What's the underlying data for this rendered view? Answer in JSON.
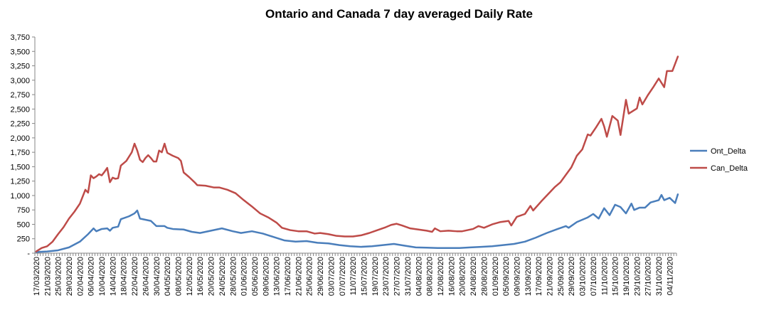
{
  "chart_data": {
    "type": "line",
    "title": "Ontario  and  Canada  7 day  averaged  Daily  Rate",
    "xlabel": "",
    "ylabel": "",
    "ylim": [
      0,
      3750
    ],
    "y_ticks": [
      0,
      250,
      500,
      750,
      1000,
      1250,
      1500,
      1750,
      2000,
      2250,
      2500,
      2750,
      3000,
      3250,
      3500,
      3750
    ],
    "y_tick_labels": [
      "-",
      "250",
      "500",
      "750",
      "1,000",
      "1,250",
      "1,500",
      "1,750",
      "2,000",
      "2,250",
      "2,500",
      "2,750",
      "3,000",
      "3,250",
      "3,500",
      "3,750"
    ],
    "x_start_date": "2020-03-17",
    "x_tick_labels": [
      "17/03/2020",
      "21/03/2020",
      "25/03/2020",
      "29/03/2020",
      "02/04/2020",
      "06/04/2020",
      "10/04/2020",
      "14/04/2020",
      "18/04/2020",
      "22/04/2020",
      "26/04/2020",
      "30/04/2020",
      "04/05/2020",
      "08/05/2020",
      "12/05/2020",
      "16/05/2020",
      "20/05/2020",
      "24/05/2020",
      "28/05/2020",
      "01/06/2020",
      "05/06/2020",
      "09/06/2020",
      "13/06/2020",
      "17/06/2020",
      "21/06/2020",
      "25/06/2020",
      "29/06/2020",
      "03/07/2020",
      "07/07/2020",
      "11/07/2020",
      "15/07/2020",
      "19/07/2020",
      "23/07/2020",
      "27/07/2020",
      "31/07/2020",
      "04/08/2020",
      "08/08/2020",
      "12/08/2020",
      "16/08/2020",
      "20/08/2020",
      "24/08/2020",
      "28/08/2020",
      "01/09/2020",
      "05/09/2020",
      "09/09/2020",
      "13/09/2020",
      "17/09/2020",
      "21/09/2020",
      "25/09/2020",
      "29/09/2020",
      "03/10/2020",
      "07/10/2020",
      "11/10/2020",
      "15/10/2020",
      "19/10/2020",
      "23/10/2020",
      "27/10/2020",
      "31/10/2020",
      "04/11/2020"
    ],
    "legend_position": "right",
    "grid": false,
    "series": [
      {
        "name": "Ont_Delta",
        "color": "#4a7ebb",
        "points": [
          [
            "2020-03-17",
            20
          ],
          [
            "2020-03-21",
            30
          ],
          [
            "2020-03-25",
            50
          ],
          [
            "2020-03-29",
            100
          ],
          [
            "2020-04-02",
            200
          ],
          [
            "2020-04-05",
            330
          ],
          [
            "2020-04-07",
            430
          ],
          [
            "2020-04-08",
            380
          ],
          [
            "2020-04-10",
            420
          ],
          [
            "2020-04-12",
            430
          ],
          [
            "2020-04-13",
            390
          ],
          [
            "2020-04-14",
            440
          ],
          [
            "2020-04-16",
            460
          ],
          [
            "2020-04-17",
            590
          ],
          [
            "2020-04-20",
            640
          ],
          [
            "2020-04-22",
            690
          ],
          [
            "2020-04-23",
            740
          ],
          [
            "2020-04-24",
            600
          ],
          [
            "2020-04-28",
            560
          ],
          [
            "2020-04-30",
            470
          ],
          [
            "2020-05-03",
            470
          ],
          [
            "2020-05-04",
            440
          ],
          [
            "2020-05-06",
            420
          ],
          [
            "2020-05-10",
            410
          ],
          [
            "2020-05-13",
            370
          ],
          [
            "2020-05-16",
            350
          ],
          [
            "2020-05-20",
            390
          ],
          [
            "2020-05-24",
            430
          ],
          [
            "2020-05-28",
            380
          ],
          [
            "2020-05-31",
            350
          ],
          [
            "2020-06-04",
            380
          ],
          [
            "2020-06-08",
            340
          ],
          [
            "2020-06-12",
            280
          ],
          [
            "2020-06-16",
            220
          ],
          [
            "2020-06-20",
            200
          ],
          [
            "2020-06-24",
            210
          ],
          [
            "2020-06-28",
            180
          ],
          [
            "2020-07-02",
            170
          ],
          [
            "2020-07-06",
            140
          ],
          [
            "2020-07-10",
            120
          ],
          [
            "2020-07-14",
            110
          ],
          [
            "2020-07-18",
            120
          ],
          [
            "2020-07-22",
            140
          ],
          [
            "2020-07-26",
            160
          ],
          [
            "2020-07-30",
            130
          ],
          [
            "2020-08-03",
            100
          ],
          [
            "2020-08-07",
            95
          ],
          [
            "2020-08-11",
            90
          ],
          [
            "2020-08-15",
            90
          ],
          [
            "2020-08-19",
            90
          ],
          [
            "2020-08-23",
            100
          ],
          [
            "2020-08-27",
            110
          ],
          [
            "2020-08-31",
            120
          ],
          [
            "2020-09-04",
            140
          ],
          [
            "2020-09-08",
            160
          ],
          [
            "2020-09-12",
            200
          ],
          [
            "2020-09-16",
            270
          ],
          [
            "2020-09-20",
            350
          ],
          [
            "2020-09-24",
            420
          ],
          [
            "2020-09-27",
            470
          ],
          [
            "2020-09-28",
            440
          ],
          [
            "2020-10-01",
            540
          ],
          [
            "2020-10-05",
            620
          ],
          [
            "2020-10-07",
            680
          ],
          [
            "2020-10-09",
            600
          ],
          [
            "2020-10-11",
            780
          ],
          [
            "2020-10-13",
            660
          ],
          [
            "2020-10-15",
            840
          ],
          [
            "2020-10-17",
            800
          ],
          [
            "2020-10-19",
            690
          ],
          [
            "2020-10-21",
            860
          ],
          [
            "2020-10-22",
            750
          ],
          [
            "2020-10-24",
            790
          ],
          [
            "2020-10-26",
            790
          ],
          [
            "2020-10-28",
            880
          ],
          [
            "2020-10-31",
            920
          ],
          [
            "2020-11-01",
            1010
          ],
          [
            "2020-11-02",
            920
          ],
          [
            "2020-11-04",
            960
          ],
          [
            "2020-11-06",
            870
          ],
          [
            "2020-11-07",
            1020
          ]
        ]
      },
      {
        "name": "Can_Delta",
        "color": "#be4b48",
        "points": [
          [
            "2020-03-17",
            30
          ],
          [
            "2020-03-19",
            90
          ],
          [
            "2020-03-21",
            120
          ],
          [
            "2020-03-23",
            200
          ],
          [
            "2020-03-25",
            330
          ],
          [
            "2020-03-27",
            450
          ],
          [
            "2020-03-29",
            600
          ],
          [
            "2020-03-31",
            720
          ],
          [
            "2020-04-02",
            860
          ],
          [
            "2020-04-04",
            1100
          ],
          [
            "2020-04-05",
            1050
          ],
          [
            "2020-04-06",
            1350
          ],
          [
            "2020-04-07",
            1300
          ],
          [
            "2020-04-08",
            1330
          ],
          [
            "2020-04-09",
            1370
          ],
          [
            "2020-04-10",
            1350
          ],
          [
            "2020-04-11",
            1410
          ],
          [
            "2020-04-12",
            1480
          ],
          [
            "2020-04-13",
            1230
          ],
          [
            "2020-04-14",
            1310
          ],
          [
            "2020-04-15",
            1290
          ],
          [
            "2020-04-16",
            1300
          ],
          [
            "2020-04-17",
            1520
          ],
          [
            "2020-04-19",
            1600
          ],
          [
            "2020-04-21",
            1750
          ],
          [
            "2020-04-22",
            1900
          ],
          [
            "2020-04-23",
            1780
          ],
          [
            "2020-04-24",
            1620
          ],
          [
            "2020-04-25",
            1580
          ],
          [
            "2020-04-26",
            1650
          ],
          [
            "2020-04-27",
            1700
          ],
          [
            "2020-04-28",
            1650
          ],
          [
            "2020-04-29",
            1590
          ],
          [
            "2020-04-30",
            1590
          ],
          [
            "2020-05-01",
            1780
          ],
          [
            "2020-05-02",
            1750
          ],
          [
            "2020-05-03",
            1900
          ],
          [
            "2020-05-04",
            1740
          ],
          [
            "2020-05-06",
            1690
          ],
          [
            "2020-05-08",
            1650
          ],
          [
            "2020-05-09",
            1600
          ],
          [
            "2020-05-10",
            1400
          ],
          [
            "2020-05-12",
            1320
          ],
          [
            "2020-05-14",
            1230
          ],
          [
            "2020-05-15",
            1180
          ],
          [
            "2020-05-18",
            1170
          ],
          [
            "2020-05-21",
            1140
          ],
          [
            "2020-05-23",
            1140
          ],
          [
            "2020-05-26",
            1100
          ],
          [
            "2020-05-29",
            1040
          ],
          [
            "2020-06-01",
            920
          ],
          [
            "2020-06-04",
            810
          ],
          [
            "2020-06-07",
            690
          ],
          [
            "2020-06-10",
            620
          ],
          [
            "2020-06-13",
            530
          ],
          [
            "2020-06-15",
            440
          ],
          [
            "2020-06-18",
            400
          ],
          [
            "2020-06-21",
            380
          ],
          [
            "2020-06-24",
            380
          ],
          [
            "2020-06-27",
            340
          ],
          [
            "2020-06-29",
            350
          ],
          [
            "2020-07-02",
            330
          ],
          [
            "2020-07-05",
            300
          ],
          [
            "2020-07-08",
            290
          ],
          [
            "2020-07-11",
            290
          ],
          [
            "2020-07-14",
            310
          ],
          [
            "2020-07-17",
            350
          ],
          [
            "2020-07-20",
            400
          ],
          [
            "2020-07-23",
            450
          ],
          [
            "2020-07-25",
            490
          ],
          [
            "2020-07-27",
            510
          ],
          [
            "2020-07-29",
            480
          ],
          [
            "2020-08-01",
            430
          ],
          [
            "2020-08-04",
            410
          ],
          [
            "2020-08-07",
            390
          ],
          [
            "2020-08-09",
            370
          ],
          [
            "2020-08-10",
            430
          ],
          [
            "2020-08-12",
            380
          ],
          [
            "2020-08-15",
            390
          ],
          [
            "2020-08-18",
            380
          ],
          [
            "2020-08-20",
            380
          ],
          [
            "2020-08-22",
            400
          ],
          [
            "2020-08-24",
            420
          ],
          [
            "2020-08-26",
            470
          ],
          [
            "2020-08-28",
            440
          ],
          [
            "2020-08-31",
            500
          ],
          [
            "2020-09-03",
            540
          ],
          [
            "2020-09-06",
            560
          ],
          [
            "2020-09-07",
            480
          ],
          [
            "2020-09-09",
            630
          ],
          [
            "2020-09-12",
            680
          ],
          [
            "2020-09-14",
            820
          ],
          [
            "2020-09-15",
            740
          ],
          [
            "2020-09-18",
            900
          ],
          [
            "2020-09-21",
            1050
          ],
          [
            "2020-09-23",
            1150
          ],
          [
            "2020-09-25",
            1230
          ],
          [
            "2020-09-27",
            1360
          ],
          [
            "2020-09-29",
            1490
          ],
          [
            "2020-10-01",
            1690
          ],
          [
            "2020-10-03",
            1800
          ],
          [
            "2020-10-05",
            2060
          ],
          [
            "2020-10-06",
            2040
          ],
          [
            "2020-10-08",
            2180
          ],
          [
            "2020-10-10",
            2330
          ],
          [
            "2020-10-11",
            2200
          ],
          [
            "2020-10-12",
            2020
          ],
          [
            "2020-10-14",
            2380
          ],
          [
            "2020-10-16",
            2300
          ],
          [
            "2020-10-17",
            2050
          ],
          [
            "2020-10-19",
            2660
          ],
          [
            "2020-10-20",
            2420
          ],
          [
            "2020-10-22",
            2480
          ],
          [
            "2020-10-23",
            2510
          ],
          [
            "2020-10-24",
            2700
          ],
          [
            "2020-10-25",
            2580
          ],
          [
            "2020-10-27",
            2740
          ],
          [
            "2020-10-29",
            2880
          ],
          [
            "2020-10-31",
            3030
          ],
          [
            "2020-11-02",
            2880
          ],
          [
            "2020-11-03",
            3160
          ],
          [
            "2020-11-05",
            3160
          ],
          [
            "2020-11-07",
            3410
          ]
        ]
      }
    ]
  }
}
